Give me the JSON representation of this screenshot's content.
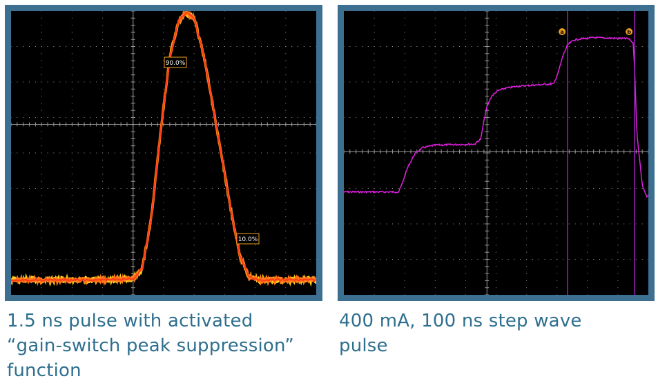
{
  "colors": {
    "frame": "#3c6f90",
    "screen": "#000000",
    "grid": "#9a9a9a",
    "pulse_outer": "#ffd21a",
    "pulse_mid": "#ff7a1a",
    "pulse_inner": "#ff3a18",
    "step": "#e020e0",
    "cursor": "#a020c0",
    "annotation": "#f0a020",
    "caption": "#2e6f8e"
  },
  "captions": {
    "left": [
      "1.5 ns pulse with activated",
      "“gain-switch peak suppression”",
      "function"
    ],
    "right": [
      "400 mA, 100 ns step wave",
      "pulse"
    ]
  },
  "chart_data": [
    {
      "type": "line",
      "grid": true,
      "xlim": [
        0,
        10
      ],
      "ylim": [
        0,
        8
      ],
      "series": [
        {
          "x": [
            0,
            1,
            2,
            3,
            4,
            4.3,
            4.6,
            4.9,
            5.2,
            5.5,
            5.75,
            6.0,
            6.3,
            6.6,
            6.9,
            7.2,
            7.5,
            7.8,
            8.1,
            9,
            10
          ],
          "values": [
            0.42,
            0.42,
            0.42,
            0.42,
            0.44,
            0.75,
            2.2,
            4.6,
            6.7,
            7.75,
            7.95,
            7.8,
            6.8,
            5.4,
            3.9,
            2.4,
            1.1,
            0.5,
            0.42,
            0.42,
            0.42
          ]
        }
      ],
      "annotations": [
        "90.0%",
        "10.0%"
      ]
    },
    {
      "type": "line",
      "grid": true,
      "xlim": [
        0,
        10
      ],
      "ylim": [
        0,
        8
      ],
      "series": [
        {
          "x": [
            0,
            1.8,
            1.9,
            2.1,
            2.35,
            2.6,
            3.0,
            4.3,
            4.5,
            4.6,
            4.7,
            4.85,
            5.05,
            5.3,
            5.7,
            6.9,
            7.05,
            7.2,
            7.35,
            7.55,
            7.8,
            8.2,
            9.35,
            9.5,
            9.55,
            9.62,
            9.8,
            9.95,
            10
          ],
          "values": [
            2.9,
            2.9,
            3.1,
            3.6,
            4.0,
            4.15,
            4.22,
            4.25,
            4.4,
            4.9,
            5.3,
            5.6,
            5.75,
            5.82,
            5.88,
            5.95,
            6.3,
            6.75,
            7.05,
            7.18,
            7.22,
            7.25,
            7.22,
            7.1,
            6.4,
            4.6,
            3.1,
            2.75,
            2.8
          ]
        }
      ],
      "cursors": [
        {
          "label": "a",
          "x": 7.35
        },
        {
          "label": "b",
          "x": 9.55
        }
      ]
    }
  ]
}
